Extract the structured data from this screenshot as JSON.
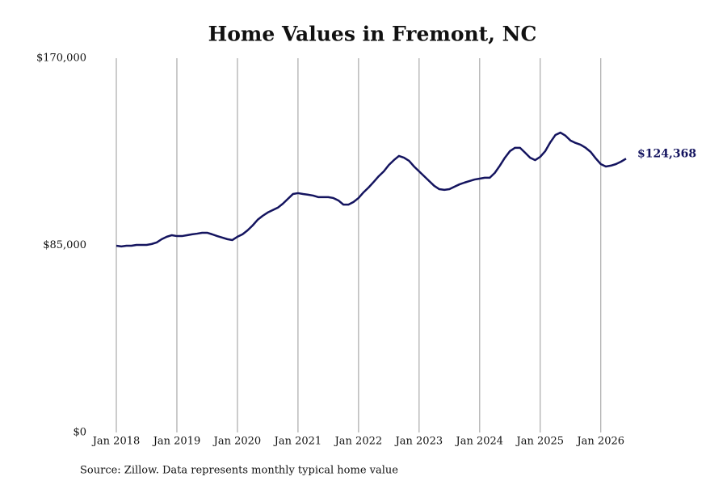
{
  "chart_data": {
    "type": "line",
    "title": "Home Values in Fremont, NC",
    "source": "Source: Zillow. Data represents monthly typical home value",
    "categories": [
      "Jan 2018",
      null,
      null,
      null,
      null,
      null,
      null,
      null,
      null,
      null,
      null,
      null,
      "Jan 2019",
      null,
      null,
      null,
      null,
      null,
      null,
      null,
      null,
      null,
      null,
      null,
      "Jan 2020",
      null,
      null,
      null,
      null,
      null,
      null,
      null,
      null,
      null,
      null,
      null,
      "Jan 2021",
      null,
      null,
      null,
      null,
      null,
      null,
      null,
      null,
      null,
      null,
      null,
      "Jan 2022",
      null,
      null,
      null,
      null,
      null,
      null,
      null,
      null,
      null,
      null,
      null,
      "Jan 2023",
      null,
      null,
      null,
      null,
      null,
      null,
      null,
      null,
      null,
      null,
      null,
      "Jan 2024",
      null,
      null,
      null,
      null,
      null,
      null,
      null,
      null,
      null,
      null,
      null,
      "Jan 2025",
      null,
      null,
      null,
      null,
      null,
      null,
      null,
      null,
      null,
      null,
      null,
      "Jan 2026",
      null,
      null,
      null,
      null,
      null
    ],
    "series": [
      {
        "name": "Typical home value",
        "color": "#14145f",
        "values": [
          84800,
          84500,
          84800,
          84800,
          85200,
          85200,
          85200,
          85600,
          86300,
          87800,
          88900,
          89600,
          89200,
          89200,
          89600,
          90000,
          90300,
          90700,
          90700,
          90000,
          89200,
          88500,
          87800,
          87400,
          88900,
          90000,
          91800,
          94000,
          96600,
          98400,
          99900,
          101000,
          102100,
          103900,
          106100,
          108300,
          108700,
          108300,
          108000,
          107600,
          106900,
          106900,
          106900,
          106500,
          105400,
          103500,
          103500,
          104700,
          106500,
          109100,
          111300,
          113800,
          116400,
          118600,
          121500,
          123700,
          125600,
          124800,
          123400,
          120800,
          118600,
          116400,
          114200,
          112000,
          110500,
          110200,
          110500,
          111600,
          112700,
          113500,
          114200,
          114900,
          115300,
          115700,
          115700,
          117900,
          121200,
          124800,
          127800,
          129300,
          129300,
          127100,
          124800,
          123700,
          125200,
          127800,
          131800,
          135100,
          136200,
          134800,
          132600,
          131500,
          130700,
          129300,
          127400,
          124500,
          121900,
          120800,
          121200,
          121900,
          123000,
          124368
        ],
        "value_labels": [
          null,
          null,
          null,
          null,
          null,
          null,
          null,
          null,
          null,
          null,
          null,
          null,
          null,
          null,
          null,
          null,
          null,
          null,
          null,
          null,
          null,
          null,
          null,
          null,
          null,
          null,
          null,
          null,
          null,
          null,
          null,
          null,
          null,
          null,
          null,
          null,
          null,
          null,
          null,
          null,
          null,
          null,
          null,
          null,
          null,
          null,
          null,
          null,
          null,
          null,
          null,
          null,
          null,
          null,
          null,
          null,
          null,
          null,
          null,
          null,
          null,
          null,
          null,
          null,
          null,
          null,
          null,
          null,
          null,
          null,
          null,
          null,
          null,
          null,
          null,
          null,
          null,
          null,
          null,
          null,
          null,
          null,
          null,
          null,
          null,
          null,
          null,
          null,
          null,
          null,
          null,
          null,
          null,
          null,
          null,
          null,
          null,
          null,
          null,
          null,
          null,
          "$124,368"
        ]
      }
    ],
    "ylim": [
      0,
      170000
    ],
    "yticks": [
      {
        "value": 0,
        "label": "$0"
      },
      {
        "value": 85000,
        "label": "$85,000"
      },
      {
        "value": 170000,
        "label": "$170,000"
      }
    ],
    "grid": true
  }
}
